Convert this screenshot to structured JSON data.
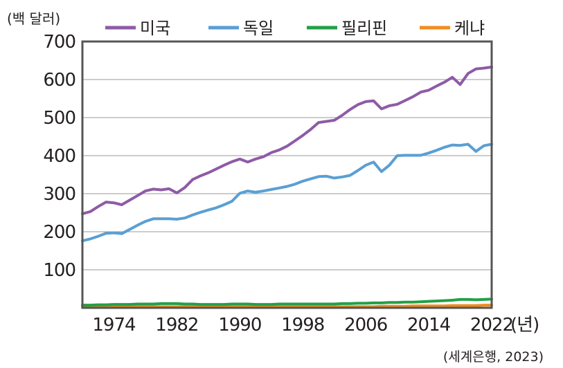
{
  "chart_data": {
    "type": "line",
    "title": "",
    "ylabel": "(백 달러)",
    "xlabel": "(년)",
    "source": "(세계은행, 2023)",
    "ylim": [
      0,
      700
    ],
    "xlim": [
      1970,
      2022
    ],
    "grid": true,
    "legend_position": "top",
    "x_ticks": [
      1974,
      1982,
      1990,
      1998,
      2006,
      2014,
      2022
    ],
    "x_tick_labels": [
      "1974",
      "1982",
      "1990",
      "1998",
      "2006",
      "2014",
      "2022"
    ],
    "y_ticks": [
      100,
      200,
      300,
      400,
      500,
      600,
      700
    ],
    "y_tick_labels": [
      "100",
      "200",
      "300",
      "400",
      "500",
      "600",
      "700"
    ],
    "x": [
      1970,
      1971,
      1972,
      1973,
      1974,
      1975,
      1976,
      1977,
      1978,
      1979,
      1980,
      1981,
      1982,
      1983,
      1984,
      1985,
      1986,
      1987,
      1988,
      1989,
      1990,
      1991,
      1992,
      1993,
      1994,
      1995,
      1996,
      1997,
      1998,
      1999,
      2000,
      2001,
      2002,
      2003,
      2004,
      2005,
      2006,
      2007,
      2008,
      2009,
      2010,
      2011,
      2012,
      2013,
      2014,
      2015,
      2016,
      2017,
      2018,
      2019,
      2020,
      2021,
      2022
    ],
    "series": [
      {
        "name": "미국",
        "color": "#8e5ba6",
        "values": [
          247,
          253,
          266,
          278,
          276,
          271,
          283,
          295,
          307,
          312,
          310,
          313,
          302,
          316,
          337,
          347,
          355,
          365,
          375,
          384,
          391,
          383,
          391,
          397,
          408,
          415,
          425,
          439,
          453,
          469,
          487,
          490,
          493,
          506,
          521,
          534,
          542,
          544,
          523,
          531,
          535,
          545,
          555,
          567,
          572,
          583,
          593,
          606,
          587,
          616,
          628,
          630,
          633
        ]
      },
      {
        "name": "독일",
        "color": "#5a9fd4",
        "values": [
          176,
          181,
          188,
          196,
          197,
          195,
          206,
          217,
          227,
          234,
          234,
          234,
          233,
          236,
          244,
          251,
          257,
          263,
          271,
          280,
          301,
          307,
          304,
          307,
          311,
          315,
          319,
          325,
          333,
          339,
          345,
          346,
          341,
          344,
          348,
          361,
          375,
          383,
          358,
          375,
          400,
          401,
          401,
          401,
          407,
          414,
          422,
          428,
          427,
          430,
          411,
          426,
          430
        ]
      },
      {
        "name": "필리핀",
        "color": "#22a046",
        "values": [
          7,
          7,
          8,
          8,
          9,
          9,
          9,
          10,
          10,
          10,
          11,
          11,
          11,
          10,
          10,
          9,
          9,
          9,
          9,
          10,
          10,
          10,
          9,
          9,
          9,
          10,
          10,
          10,
          10,
          10,
          10,
          10,
          10,
          11,
          11,
          12,
          12,
          13,
          13,
          14,
          14,
          15,
          15,
          16,
          17,
          18,
          19,
          20,
          22,
          22,
          21,
          22,
          23
        ]
      },
      {
        "name": "케냐",
        "color": "#f08c1e",
        "values": [
          2,
          2,
          2,
          3,
          3,
          3,
          3,
          3,
          3,
          3,
          3,
          3,
          3,
          3,
          3,
          3,
          3,
          3,
          3,
          3,
          3,
          3,
          3,
          3,
          3,
          3,
          3,
          3,
          3,
          3,
          3,
          3,
          3,
          3,
          3,
          3,
          3,
          3,
          4,
          4,
          4,
          4,
          5,
          5,
          5,
          5,
          5,
          6,
          6,
          6,
          6,
          7,
          7
        ]
      }
    ]
  }
}
